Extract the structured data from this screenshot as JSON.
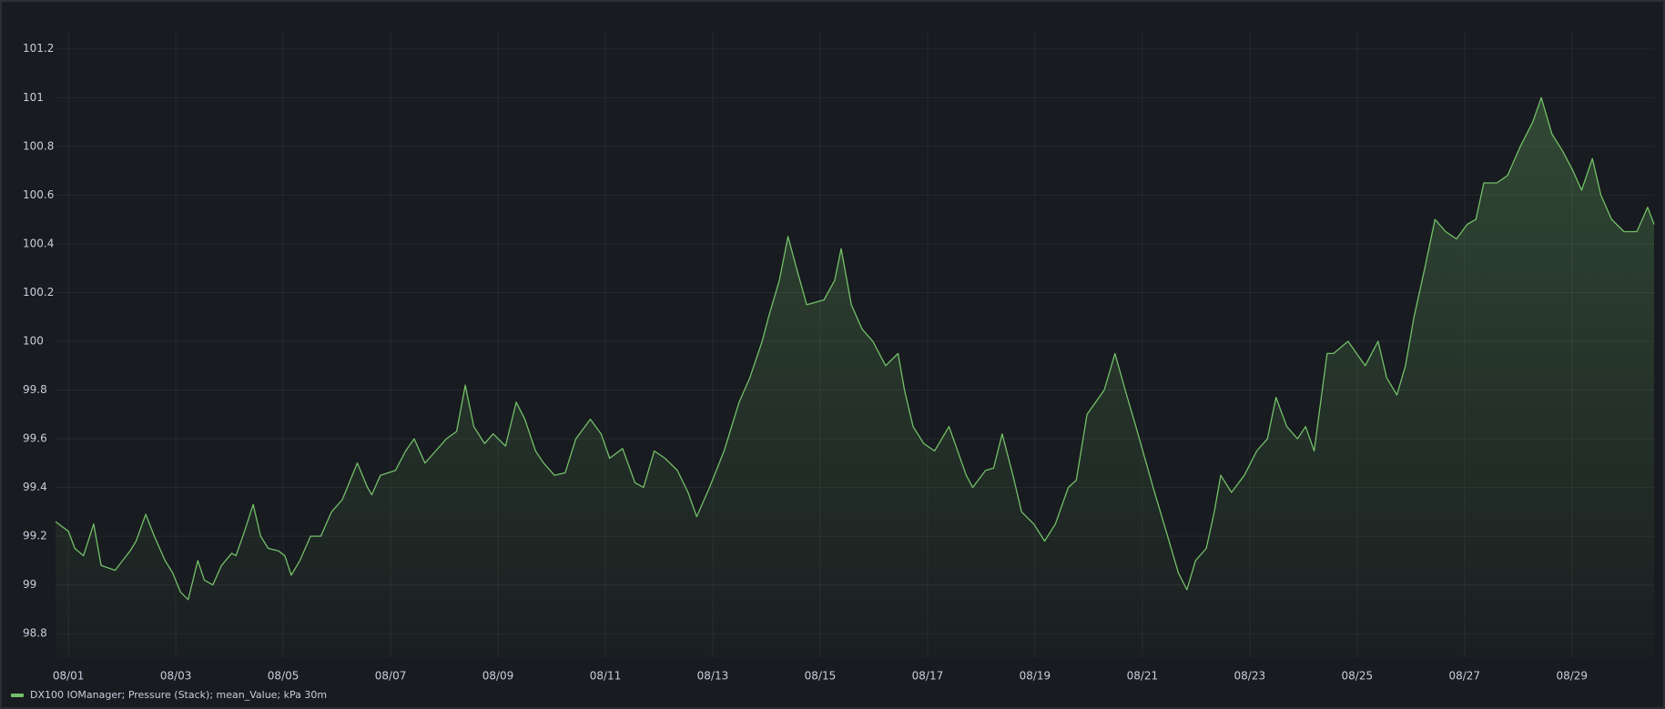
{
  "chart_data": {
    "type": "line",
    "series": [
      {
        "name": "DX100 IOManager; Pressure (Stack); mean_Value; kPa 30m",
        "color": "#73bf69",
        "x": [
          0.76,
          1.0,
          1.12,
          1.28,
          1.47,
          1.61,
          1.87,
          2.01,
          2.15,
          2.26,
          2.44,
          2.6,
          2.8,
          2.94,
          3.09,
          3.23,
          3.41,
          3.53,
          3.69,
          3.85,
          4.04,
          4.12,
          4.28,
          4.44,
          4.58,
          4.72,
          4.91,
          5.03,
          5.15,
          5.31,
          5.51,
          5.7,
          5.9,
          6.1,
          6.38,
          6.57,
          6.65,
          6.81,
          7.09,
          7.28,
          7.44,
          7.64,
          7.84,
          8.04,
          8.23,
          8.39,
          8.55,
          8.75,
          8.91,
          9.14,
          9.34,
          9.5,
          9.7,
          9.85,
          10.05,
          10.25,
          10.45,
          10.72,
          10.92,
          11.08,
          11.32,
          11.55,
          11.71,
          11.91,
          12.11,
          12.34,
          12.54,
          12.7,
          12.94,
          13.21,
          13.49,
          13.69,
          13.92,
          14.04,
          14.24,
          14.4,
          14.56,
          14.75,
          15.07,
          15.27,
          15.39,
          15.58,
          15.78,
          15.98,
          16.22,
          16.45,
          16.57,
          16.73,
          16.93,
          17.13,
          17.4,
          17.56,
          17.72,
          17.84,
          18.08,
          18.23,
          18.39,
          18.59,
          18.75,
          18.98,
          19.18,
          19.38,
          19.62,
          19.77,
          19.97,
          20.29,
          20.49,
          20.68,
          20.88,
          21.2,
          21.47,
          21.67,
          21.83,
          21.99,
          22.19,
          22.34,
          22.46,
          22.66,
          22.9,
          23.13,
          23.33,
          23.49,
          23.69,
          23.89,
          24.04,
          24.2,
          24.44,
          24.56,
          24.83,
          25.15,
          25.39,
          25.55,
          25.74,
          25.9,
          26.06,
          26.26,
          26.45,
          26.65,
          26.85,
          27.05,
          27.21,
          27.36,
          27.6,
          27.8,
          28.04,
          28.27,
          28.43,
          28.63,
          28.83,
          29.02,
          29.18,
          29.38,
          29.54,
          29.74,
          29.97,
          30.21,
          30.41,
          30.53
        ],
        "values": [
          99.26,
          99.22,
          99.15,
          99.12,
          99.25,
          99.08,
          99.06,
          99.1,
          99.14,
          99.18,
          99.29,
          99.2,
          99.1,
          99.05,
          98.97,
          98.94,
          99.1,
          99.02,
          99.0,
          99.08,
          99.13,
          99.12,
          99.22,
          99.33,
          99.2,
          99.15,
          99.14,
          99.12,
          99.04,
          99.1,
          99.2,
          99.2,
          99.3,
          99.35,
          99.5,
          99.4,
          99.37,
          99.45,
          99.47,
          99.55,
          99.6,
          99.5,
          99.55,
          99.6,
          99.63,
          99.82,
          99.65,
          99.58,
          99.62,
          99.57,
          99.75,
          99.68,
          99.55,
          99.5,
          99.45,
          99.46,
          99.6,
          99.68,
          99.62,
          99.52,
          99.56,
          99.42,
          99.4,
          99.55,
          99.52,
          99.47,
          99.38,
          99.28,
          99.4,
          99.55,
          99.75,
          99.85,
          100.0,
          100.1,
          100.25,
          100.43,
          100.3,
          100.15,
          100.17,
          100.25,
          100.38,
          100.15,
          100.05,
          100.0,
          99.9,
          99.95,
          99.8,
          99.65,
          99.58,
          99.55,
          99.65,
          99.55,
          99.45,
          99.4,
          99.47,
          99.48,
          99.62,
          99.45,
          99.3,
          99.25,
          99.18,
          99.25,
          99.4,
          99.43,
          99.7,
          99.8,
          99.95,
          99.8,
          99.65,
          99.4,
          99.2,
          99.05,
          98.98,
          99.1,
          99.15,
          99.3,
          99.45,
          99.38,
          99.45,
          99.55,
          99.6,
          99.77,
          99.65,
          99.6,
          99.65,
          99.55,
          99.95,
          99.95,
          100.0,
          99.9,
          100.0,
          99.85,
          99.78,
          99.9,
          100.1,
          100.3,
          100.5,
          100.45,
          100.42,
          100.48,
          100.5,
          100.65,
          100.65,
          100.68,
          100.8,
          100.9,
          101.0,
          100.85,
          100.78,
          100.7,
          100.62,
          100.75,
          100.6,
          100.5,
          100.45,
          100.45,
          100.55,
          100.48
        ]
      }
    ],
    "xlim": [
      0.76,
      30.53
    ],
    "xticks": [
      {
        "value": 1,
        "label": "08/01"
      },
      {
        "value": 3,
        "label": "08/03"
      },
      {
        "value": 5,
        "label": "08/05"
      },
      {
        "value": 7,
        "label": "08/07"
      },
      {
        "value": 9,
        "label": "08/09"
      },
      {
        "value": 11,
        "label": "08/11"
      },
      {
        "value": 13,
        "label": "08/13"
      },
      {
        "value": 15,
        "label": "08/15"
      },
      {
        "value": 17,
        "label": "08/17"
      },
      {
        "value": 19,
        "label": "08/19"
      },
      {
        "value": 21,
        "label": "08/21"
      },
      {
        "value": 23,
        "label": "08/23"
      },
      {
        "value": 25,
        "label": "08/25"
      },
      {
        "value": 27,
        "label": "08/27"
      },
      {
        "value": 29,
        "label": "08/29"
      }
    ],
    "ylim": [
      98.7,
      101.27
    ],
    "yticks": [
      98.8,
      99,
      99.2,
      99.4,
      99.6,
      99.8,
      100,
      100.2,
      100.4,
      100.6,
      100.8,
      101,
      101.2
    ],
    "grid": true
  }
}
